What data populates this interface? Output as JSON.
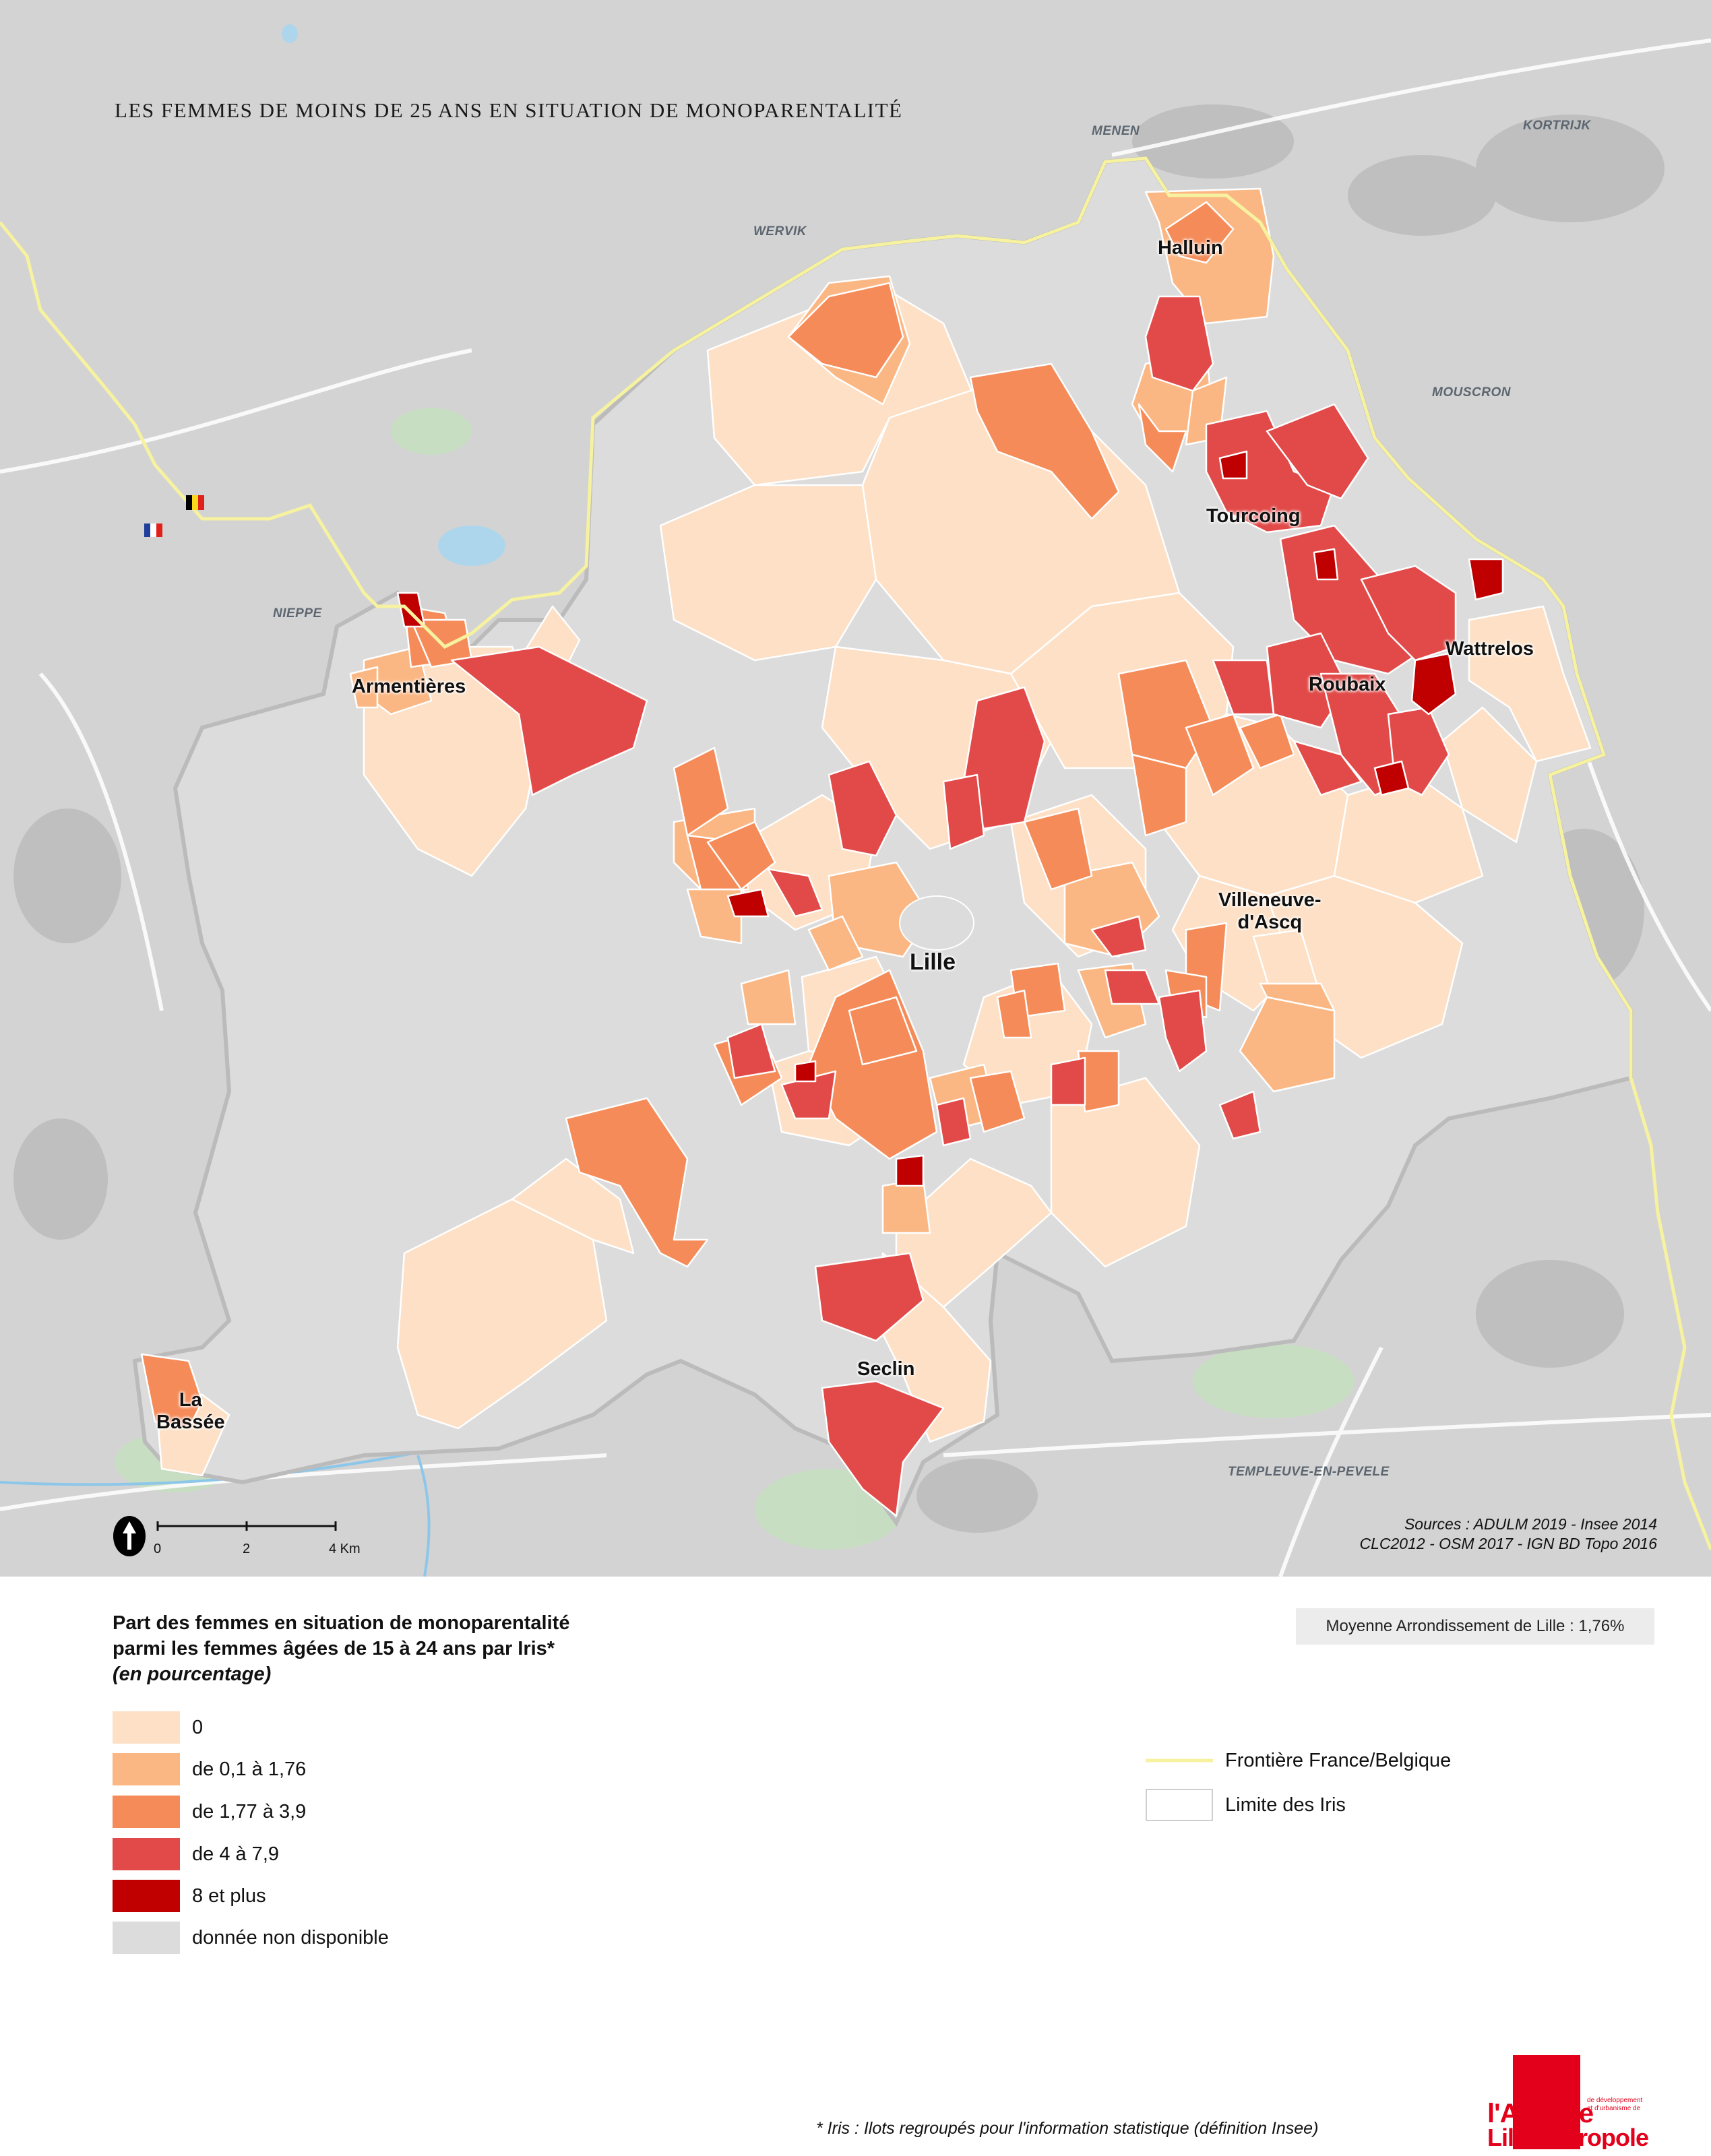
{
  "title": "LES FEMMES DE MOINS DE 25 ANS EN SITUATION DE MONOPARENTALITÉ",
  "places": {
    "menen": "MENEN",
    "kortrijk": "KORTRIJK",
    "wervik": "WERVIK",
    "mouscron": "MOUSCRON",
    "nieppe": "NIEPPE",
    "templeuve": "TEMPLEUVE-EN-PEVELE"
  },
  "cities": {
    "halluin": "Halluin",
    "tourcoing": "Tourcoing",
    "wattrelos": "Wattrelos",
    "roubaix": "Roubaix",
    "armentieres": "Armentières",
    "villeneuve_1": "Villeneuve-",
    "villeneuve_2": "d'Ascq",
    "lille": "Lille",
    "seclin": "Seclin",
    "labassee_1": "La",
    "labassee_2": "Bassée"
  },
  "scale": {
    "ticks": [
      "0",
      "2",
      "4 Km"
    ]
  },
  "sources": {
    "line1": "Sources : ADULM 2019 - Insee 2014",
    "line2": "CLC2012 -  OSM 2017 - IGN BD Topo 2016"
  },
  "legend": {
    "title_line1": "Part des femmes en situation de monoparentalité",
    "title_line2": "parmi les femmes âgées de 15 à 24 ans par Iris*",
    "subtitle": "(en pourcentage)",
    "classes": [
      {
        "label": "0",
        "color": "#fde0c5"
      },
      {
        "label": "de 0,1 à 1,76",
        "color": "#fbb783"
      },
      {
        "label": "de 1,77 à 3,9",
        "color": "#f58b58"
      },
      {
        "label": "de 4 à 7,9",
        "color": "#e14a48"
      },
      {
        "label": "8 et plus",
        "color": "#c00000"
      },
      {
        "label": "donnée non disponible",
        "color": "#dcdcdc"
      }
    ],
    "mean": "Moyenne Arrondissement de Lille : 1,76%",
    "border_label": "Frontière France/Belgique",
    "border_color": "#f6f2a0",
    "iris_label": "Limite des Iris"
  },
  "footnote": "* Iris : Ilots regroupés pour l'information statistique (définition Insee)",
  "logo": {
    "line1": "l'Agence",
    "line2": "Lille Métropole",
    "small": "de développement et d'urbanisme de",
    "color": "#e3001b"
  }
}
